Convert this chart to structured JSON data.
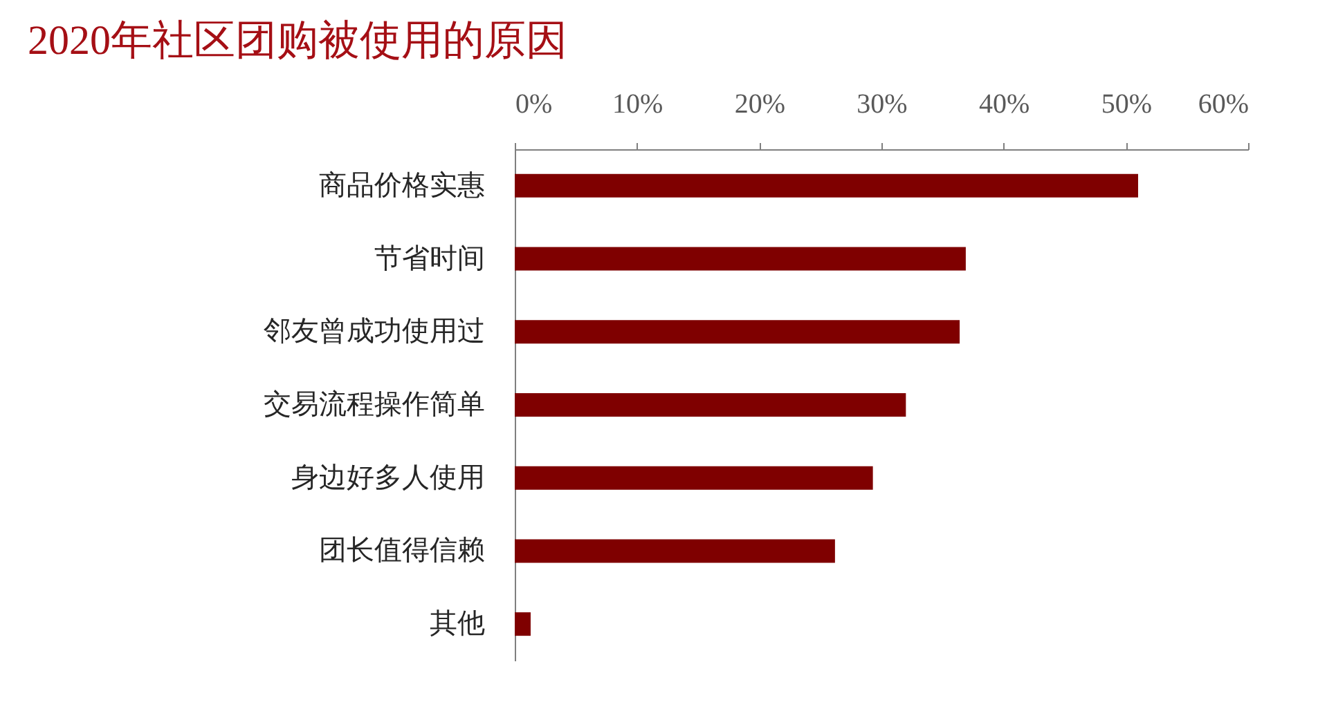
{
  "chart_data": {
    "type": "bar",
    "orientation": "horizontal",
    "title": "2020年社区团购被使用的原因",
    "categories": [
      "商品价格实惠",
      "节省时间",
      "邻友曾成功使用过",
      "交易流程操作简单",
      "身边好多人使用",
      "团长值得信赖",
      "其他"
    ],
    "values": [
      51.0,
      36.9,
      36.4,
      32.0,
      29.3,
      26.2,
      1.3
    ],
    "color": "#7f0000",
    "xlim": [
      0,
      60
    ],
    "xticks": [
      {
        "value": 0,
        "label": "0%"
      },
      {
        "value": 10,
        "label": "10%"
      },
      {
        "value": 20,
        "label": "20%"
      },
      {
        "value": 30,
        "label": "30%"
      },
      {
        "value": 40,
        "label": "40%"
      },
      {
        "value": 50,
        "label": "50%"
      },
      {
        "value": 60,
        "label": "60%"
      }
    ],
    "grid": false
  }
}
